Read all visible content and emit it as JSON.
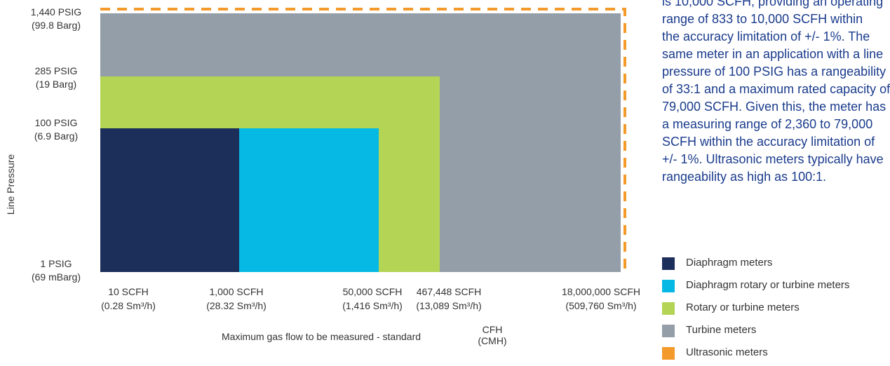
{
  "chart_data": {
    "type": "area",
    "ylabel": "Line Pressure",
    "xlabel": "Maximum gas flow to be measured - standard",
    "xunit": [
      "CFH",
      "(CMH)"
    ],
    "y_ticks": [
      {
        "label": "1,440 PSIG",
        "sub": "(99.8 Barg)"
      },
      {
        "label": "285 PSIG",
        "sub": "(19 Barg)"
      },
      {
        "label": "100 PSIG",
        "sub": "(6.9 Barg)"
      },
      {
        "label": "1 PSIG",
        "sub": "(69 mBarg)"
      }
    ],
    "x_ticks": [
      {
        "label": "10 SCFH",
        "sub": "(0.28 Sm³/h)"
      },
      {
        "label": "1,000 SCFH",
        "sub": "(28.32 Sm³/h)"
      },
      {
        "label": "50,000 SCFH",
        "sub": "(1,416 Sm³/h)"
      },
      {
        "label": "467,448 SCFH",
        "sub": "(13,089 Sm³/h)"
      },
      {
        "label": "18,000,000 SCFH",
        "sub": "(509,760 Sm³/h)"
      }
    ],
    "series": [
      {
        "name": "Ultrasonic meters",
        "max_flow_scfh": 18000000,
        "max_pressure_psig": 1440,
        "color": "#f39a2b",
        "style": "dashed-outline"
      },
      {
        "name": "Turbine meters",
        "max_flow_scfh": 18000000,
        "max_pressure_psig": 1440,
        "color": "#939ea8"
      },
      {
        "name": "Rotary or turbine meters",
        "max_flow_scfh": 467448,
        "max_pressure_psig": 285,
        "color": "#b3d455"
      },
      {
        "name": "Diaphragm rotary or turbine meters",
        "max_flow_scfh": 50000,
        "max_pressure_psig": 100,
        "color": "#06b9e4"
      },
      {
        "name": "Diaphragm meters",
        "max_flow_scfh": 1000,
        "max_pressure_psig": 100,
        "color": "#1c2e5a"
      }
    ]
  },
  "paragraph_lines": [
    "is 10,000 SCFH, providing an operating",
    "range of 833 to 10,000 SCFH within",
    "the accuracy limitation of +/- 1%. The",
    "same meter in an application with a line",
    "pressure of 100 PSIG has a rangeability",
    "of 33:1 and a maximum rated capacity of",
    "79,000 SCFH. Given this, the meter has",
    "a measuring range of 2,360 to 79,000",
    "SCFH within the accuracy limitation of",
    "+/- 1%. Ultrasonic meters typically have",
    "rangeability as high as 100:1."
  ],
  "legend": [
    {
      "label": "Diaphragm meters",
      "color": "#1c2e5a"
    },
    {
      "label": "Diaphragm rotary or turbine meters",
      "color": "#06b9e4"
    },
    {
      "label": "Rotary or turbine meters",
      "color": "#b3d455"
    },
    {
      "label": "Turbine meters",
      "color": "#939ea8"
    },
    {
      "label": "Ultrasonic meters",
      "color": "#f39a2b"
    }
  ]
}
